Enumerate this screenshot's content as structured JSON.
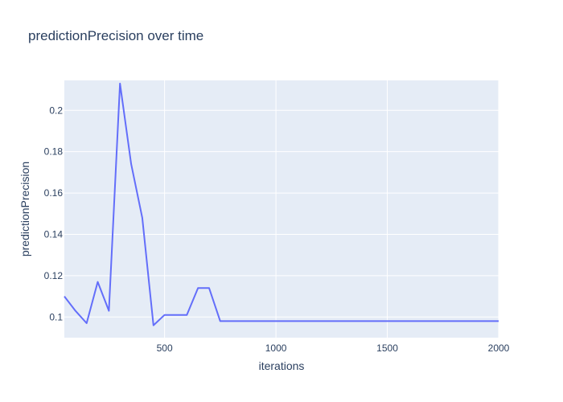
{
  "chart_data": {
    "type": "line",
    "title": "predictionPrecision over time",
    "xlabel": "iterations",
    "ylabel": "predictionPrecision",
    "xlim": [
      50,
      2000
    ],
    "ylim": [
      0.09,
      0.2145
    ],
    "x_ticks": [
      500,
      1000,
      1500,
      2000
    ],
    "y_ticks": [
      0.1,
      0.12,
      0.14,
      0.16,
      0.18,
      0.2
    ],
    "grid": true,
    "background_color": "#e5ecf6",
    "line_color": "#636efa",
    "series": [
      {
        "x": [
          50,
          100,
          150,
          200,
          250,
          300,
          350,
          400,
          450,
          500,
          550,
          600,
          650,
          700,
          750,
          800,
          850,
          900,
          950,
          1000,
          1050,
          1100,
          1150,
          1200,
          1250,
          1300,
          1350,
          1400,
          1450,
          1500,
          1550,
          1600,
          1650,
          1700,
          1750,
          1800,
          1850,
          1900,
          1950,
          2000
        ],
        "y": [
          0.11,
          0.103,
          0.097,
          0.117,
          0.103,
          0.213,
          0.174,
          0.148,
          0.096,
          0.101,
          0.101,
          0.101,
          0.114,
          0.114,
          0.098,
          0.098,
          0.098,
          0.098,
          0.098,
          0.098,
          0.098,
          0.098,
          0.098,
          0.098,
          0.098,
          0.098,
          0.098,
          0.098,
          0.098,
          0.098,
          0.098,
          0.098,
          0.098,
          0.098,
          0.098,
          0.098,
          0.098,
          0.098,
          0.098,
          0.098
        ]
      }
    ]
  }
}
